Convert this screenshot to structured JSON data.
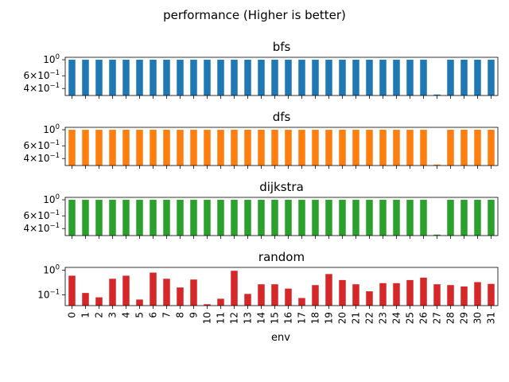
{
  "figure": {
    "suptitle": "performance (Higher is better)",
    "xlabel": "env"
  },
  "chart_data": {
    "type": "bar",
    "scale": "log",
    "categories": [
      "0",
      "1",
      "2",
      "3",
      "4",
      "5",
      "6",
      "7",
      "8",
      "9",
      "10",
      "11",
      "12",
      "13",
      "14",
      "15",
      "16",
      "17",
      "18",
      "19",
      "20",
      "21",
      "22",
      "23",
      "24",
      "25",
      "26",
      "27",
      "28",
      "29",
      "30",
      "31"
    ],
    "series": [
      {
        "name": "bfs",
        "color": "#1f77b4",
        "ylim": [
          0.32,
          1.08
        ],
        "values": [
          1,
          1,
          1,
          1,
          1,
          1,
          1,
          1,
          1,
          1,
          1,
          1,
          1,
          1,
          1,
          1,
          1,
          1,
          1,
          1,
          1,
          1,
          1,
          1,
          1,
          1,
          1,
          0.33,
          1,
          1,
          1,
          1
        ],
        "tick_labels": [
          "10^0",
          "6×10^-1",
          "4×10^-1"
        ]
      },
      {
        "name": "dfs",
        "color": "#ff7f0e",
        "ylim": [
          0.32,
          1.08
        ],
        "values": [
          1,
          1,
          1,
          1,
          1,
          1,
          1,
          1,
          1,
          1,
          1,
          1,
          1,
          1,
          1,
          1,
          1,
          1,
          1,
          1,
          1,
          1,
          1,
          1,
          1,
          1,
          1,
          0.33,
          1,
          1,
          1,
          1
        ],
        "tick_labels": [
          "10^0",
          "6×10^-1",
          "4×10^-1"
        ]
      },
      {
        "name": "dijkstra",
        "color": "#2ca02c",
        "ylim": [
          0.32,
          1.08
        ],
        "values": [
          1,
          1,
          1,
          1,
          1,
          1,
          1,
          1,
          1,
          1,
          1,
          1,
          1,
          1,
          1,
          1,
          1,
          1,
          1,
          1,
          1,
          1,
          1,
          1,
          1,
          1,
          1,
          0.33,
          1,
          1,
          1,
          1
        ],
        "tick_labels": [
          "10^0",
          "6×10^-1",
          "4×10^-1"
        ]
      },
      {
        "name": "random",
        "color": "#d62728",
        "ylim": [
          0.037,
          1.3
        ],
        "values": [
          0.6,
          0.12,
          0.08,
          0.45,
          0.6,
          0.065,
          0.8,
          0.45,
          0.2,
          0.42,
          0.042,
          0.07,
          0.95,
          0.11,
          0.27,
          0.27,
          0.18,
          0.075,
          0.25,
          0.7,
          0.4,
          0.27,
          0.14,
          0.3,
          0.3,
          0.4,
          0.5,
          0.27,
          0.25,
          0.22,
          0.33,
          0.28
        ],
        "tick_labels": [
          "10^0",
          "10^-1"
        ]
      }
    ]
  }
}
